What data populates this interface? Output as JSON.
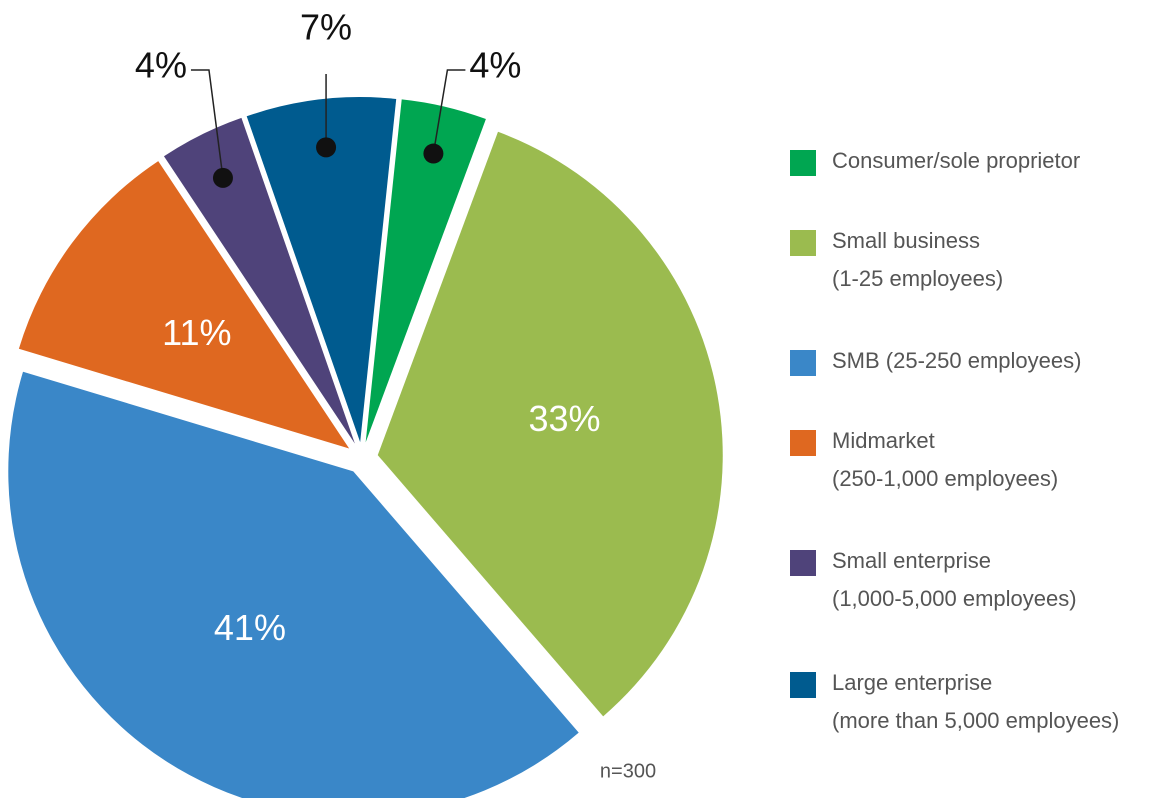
{
  "chart_data": {
    "type": "pie",
    "categories": [
      "Consumer/sole proprietor",
      "Small business\n(1-25 employees)",
      "SMB (25-250 employees)",
      "Midmarket\n(250-1,000 employees)",
      "Small enterprise\n(1,000-5,000 employees)",
      "Large enterprise\n(more than 5,000 employees)"
    ],
    "values": [
      4,
      33,
      41,
      11,
      4,
      7
    ],
    "value_labels": [
      "4%",
      "33%",
      "41%",
      "11%",
      "4%",
      "7%"
    ],
    "colors": [
      "#00a651",
      "#9bbb4f",
      "#3a87c8",
      "#df6820",
      "#4f437a",
      "#005b8f"
    ],
    "annotation": "n=300"
  }
}
